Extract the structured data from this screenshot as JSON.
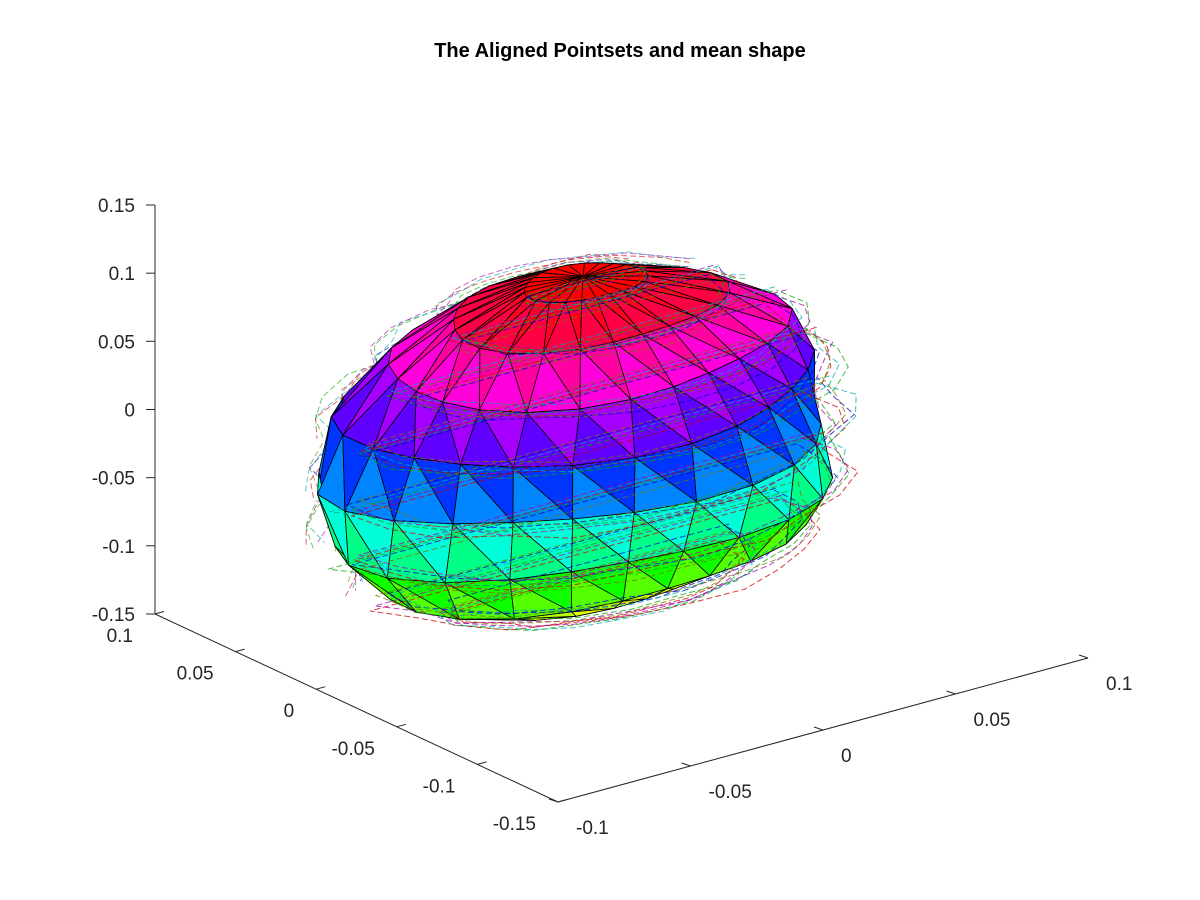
{
  "chart_data": {
    "type": "3d-surface",
    "title": "The Aligned Pointsets and mean shape",
    "axes": {
      "x": {
        "ticks": [
          -0.1,
          -0.05,
          0,
          0.05,
          0.1
        ],
        "tick_labels": [
          "-0.1",
          "-0.05",
          "0",
          "0.05",
          "0.1"
        ],
        "range": [
          -0.1,
          0.1
        ]
      },
      "y": {
        "ticks": [
          -0.15,
          -0.1,
          -0.05,
          0,
          0.05,
          0.1
        ],
        "tick_labels": [
          "-0.15",
          "-0.1",
          "-0.05",
          "0",
          "0.05",
          "0.1"
        ],
        "range": [
          -0.15,
          0.1
        ]
      },
      "z": {
        "ticks": [
          -0.15,
          -0.1,
          -0.05,
          0,
          0.05,
          0.1,
          0.15
        ],
        "tick_labels": [
          "-0.15",
          "-0.1",
          "-0.05",
          "0",
          "0.05",
          "0.1",
          "0.15"
        ],
        "range": [
          -0.15,
          0.15
        ]
      }
    },
    "grid": false,
    "view": {
      "azimuth": -37.5,
      "elevation": 30
    },
    "mean_shape": {
      "rings": [
        {
          "z": 0.085,
          "rx": 0.02,
          "ry": 0.018,
          "cx": 0.008,
          "cy": 0.012
        },
        {
          "z": 0.07,
          "rx": 0.045,
          "ry": 0.04,
          "cx": 0.006,
          "cy": 0.008
        },
        {
          "z": 0.045,
          "rx": 0.065,
          "ry": 0.058,
          "cx": 0.004,
          "cy": 0.004
        },
        {
          "z": 0.015,
          "rx": 0.078,
          "ry": 0.068,
          "cx": 0.0,
          "cy": 0.0
        },
        {
          "z": -0.02,
          "rx": 0.082,
          "ry": 0.072,
          "cx": -0.004,
          "cy": -0.006
        },
        {
          "z": -0.055,
          "rx": 0.08,
          "ry": 0.07,
          "cx": -0.008,
          "cy": -0.012
        },
        {
          "z": -0.085,
          "rx": 0.07,
          "ry": 0.06,
          "cx": -0.01,
          "cy": -0.016
        },
        {
          "z": -0.1,
          "rx": 0.05,
          "ry": 0.042,
          "cx": -0.01,
          "cy": -0.018
        }
      ],
      "segments": 24,
      "colormap": [
        "#ffff00",
        "#00ff00",
        "#00ffff",
        "#0000ff",
        "#ff00ff",
        "#ff0000"
      ]
    },
    "pointsets": {
      "count": 6,
      "colors": [
        "#0000cc",
        "#00aa00",
        "#cc0000",
        "#00aaaa",
        "#aa00aa",
        "#777700"
      ]
    }
  }
}
